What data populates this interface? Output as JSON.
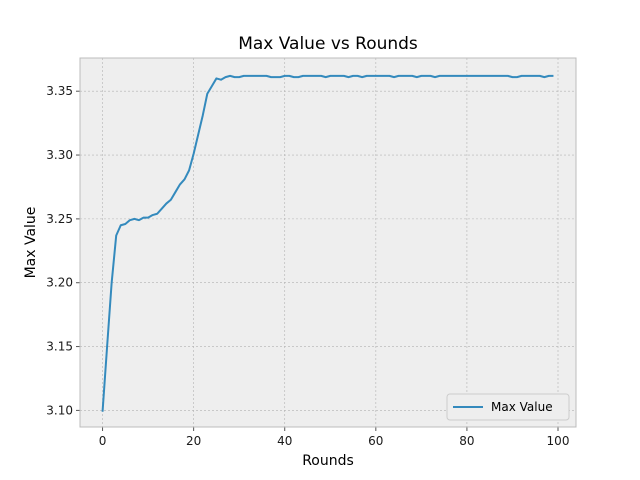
{
  "chart_data": {
    "type": "line",
    "title": "Max Value vs Rounds",
    "xlabel": "Rounds",
    "ylabel": "Max Value",
    "xlim": [
      -4.95,
      103.95
    ],
    "ylim": [
      3.087,
      3.376
    ],
    "xticks": [
      0,
      20,
      40,
      60,
      80,
      100
    ],
    "yticks": [
      3.1,
      3.15,
      3.2,
      3.25,
      3.3,
      3.35
    ],
    "xtick_labels": [
      "0",
      "20",
      "40",
      "60",
      "80",
      "100"
    ],
    "ytick_labels": [
      "3.10",
      "3.15",
      "3.20",
      "3.25",
      "3.30",
      "3.35"
    ],
    "grid": true,
    "legend_position": "lower-right",
    "series": [
      {
        "name": "Max Value",
        "color": "#348ABD",
        "x": [
          0,
          1,
          2,
          3,
          4,
          5,
          6,
          7,
          8,
          9,
          10,
          11,
          12,
          13,
          14,
          15,
          16,
          17,
          18,
          19,
          20,
          21,
          22,
          23,
          24,
          25,
          26,
          27,
          28,
          29,
          30,
          31,
          32,
          33,
          34,
          35,
          36,
          37,
          38,
          39,
          40,
          41,
          42,
          43,
          44,
          45,
          46,
          47,
          48,
          49,
          50,
          51,
          52,
          53,
          54,
          55,
          56,
          57,
          58,
          59,
          60,
          61,
          62,
          63,
          64,
          65,
          66,
          67,
          68,
          69,
          70,
          71,
          72,
          73,
          74,
          75,
          76,
          77,
          78,
          79,
          80,
          81,
          82,
          83,
          84,
          85,
          86,
          87,
          88,
          89,
          90,
          91,
          92,
          93,
          94,
          95,
          96,
          97,
          98,
          99
        ],
        "values": [
          3.099,
          3.15,
          3.2,
          3.237,
          3.245,
          3.246,
          3.249,
          3.25,
          3.249,
          3.251,
          3.251,
          3.253,
          3.254,
          3.258,
          3.262,
          3.265,
          3.271,
          3.277,
          3.281,
          3.288,
          3.301,
          3.316,
          3.331,
          3.348,
          3.354,
          3.36,
          3.359,
          3.361,
          3.362,
          3.361,
          3.361,
          3.362,
          3.362,
          3.362,
          3.362,
          3.362,
          3.362,
          3.361,
          3.361,
          3.361,
          3.362,
          3.362,
          3.361,
          3.361,
          3.362,
          3.362,
          3.362,
          3.362,
          3.362,
          3.361,
          3.362,
          3.362,
          3.362,
          3.362,
          3.361,
          3.362,
          3.362,
          3.361,
          3.362,
          3.362,
          3.362,
          3.362,
          3.362,
          3.362,
          3.361,
          3.362,
          3.362,
          3.362,
          3.362,
          3.361,
          3.362,
          3.362,
          3.362,
          3.361,
          3.362,
          3.362,
          3.362,
          3.362,
          3.362,
          3.362,
          3.362,
          3.362,
          3.362,
          3.362,
          3.362,
          3.362,
          3.362,
          3.362,
          3.362,
          3.362,
          3.361,
          3.361,
          3.362,
          3.362,
          3.362,
          3.362,
          3.362,
          3.361,
          3.362,
          3.362
        ]
      }
    ]
  }
}
